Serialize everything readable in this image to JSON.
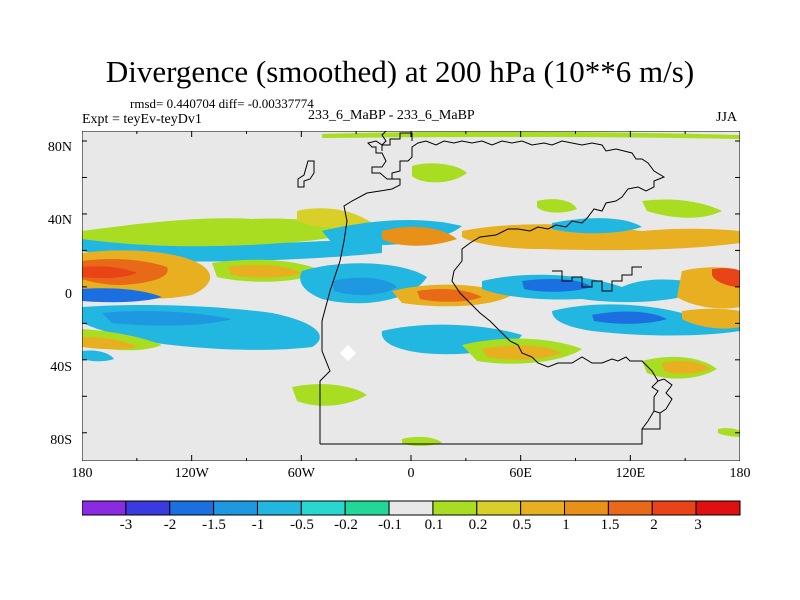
{
  "title": "Divergence (smoothed) at 200 hPa (10**6 m/s)",
  "stats": "rmsd= 0.440704 diff= -0.00337774",
  "experiment": "Expt = teyEv-teyDv1",
  "runs": "233_6_MaBP - 233_6_MaBP",
  "season": "JJA",
  "x_ticks": [
    "180",
    "120W",
    "60W",
    "0",
    "60E",
    "120E",
    "180"
  ],
  "y_ticks": [
    "80N",
    "40N",
    "0",
    "40S",
    "80S"
  ],
  "colorbar": {
    "colors": [
      "#8a2be2",
      "#3a3ae0",
      "#1c6fe0",
      "#1e98e0",
      "#22b7e0",
      "#2ad6d0",
      "#22d898",
      "#e8e8e8",
      "#a8dd22",
      "#d8d028",
      "#e8b020",
      "#e89018",
      "#e86a18",
      "#e84418",
      "#e01010"
    ],
    "labels": [
      "-3",
      "-2",
      "-1.5",
      "-1",
      "-0.5",
      "-0.2",
      "-0.1",
      "0.1",
      "0.2",
      "0.5",
      "1",
      "1.5",
      "2",
      "3"
    ]
  }
}
